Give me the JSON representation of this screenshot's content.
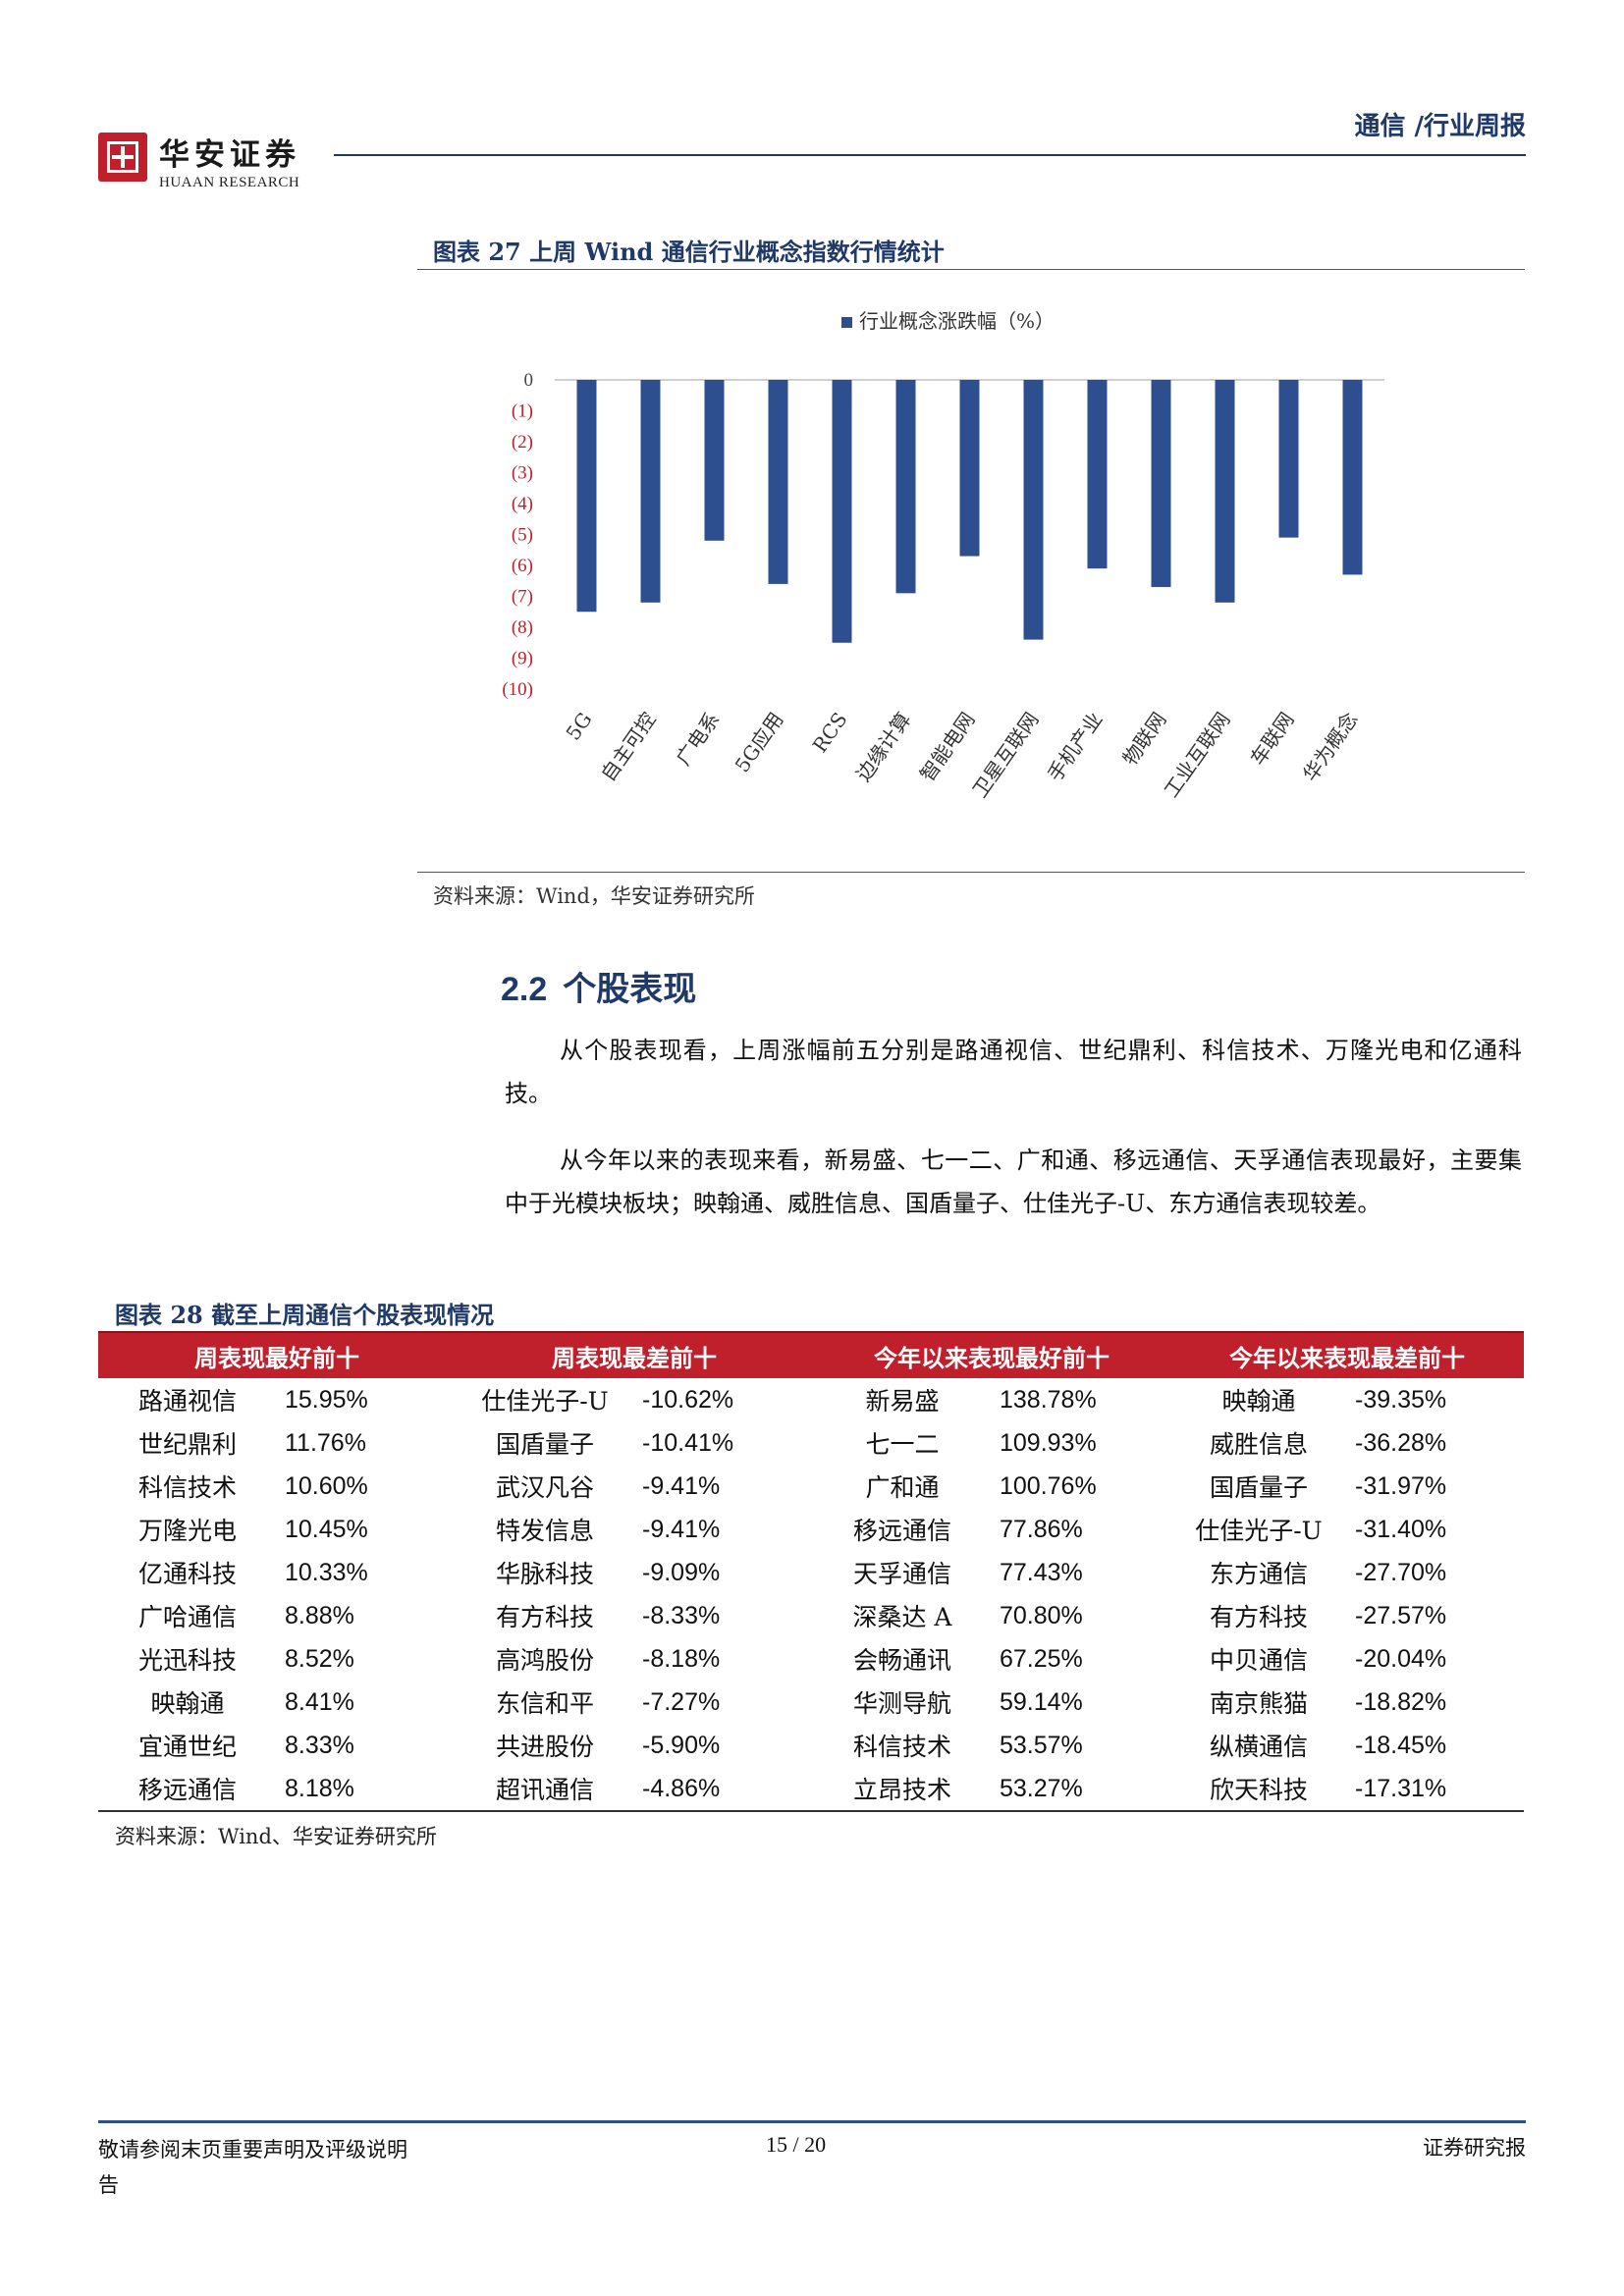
{
  "header": {
    "logo_cn": "华安证券",
    "logo_en": "HUAAN RESEARCH",
    "report_tag": "通信 /行业周报"
  },
  "figure27": {
    "title": "图表 27 上周 Wind 通信行业概念指数行情统计",
    "source": "资料来源：Wind，华安证券研究所",
    "chart_data": {
      "type": "bar",
      "legend": "行业概念涨跌幅（%）",
      "legend_position": "top-center",
      "categories": [
        "5G",
        "自主可控",
        "广电系",
        "5G应用",
        "RCS",
        "边缘计算",
        "智能电网",
        "卫星互联网",
        "手机产业",
        "物联网",
        "工业互联网",
        "车联网",
        "华为概念"
      ],
      "values": [
        -7.5,
        -7.2,
        -5.2,
        -6.6,
        -8.5,
        -6.9,
        -5.7,
        -8.4,
        -6.1,
        -6.7,
        -7.2,
        -5.1,
        -6.3
      ],
      "ylim": [
        -10,
        0
      ],
      "yticks": [
        "0",
        "(1)",
        "(2)",
        "(3)",
        "(4)",
        "(5)",
        "(6)",
        "(7)",
        "(8)",
        "(9)",
        "(10)"
      ],
      "bar_color": "#2e4f8f",
      "grid": false
    }
  },
  "section": {
    "number": "2.2",
    "title": "个股表现",
    "para1": "从个股表现看，上周涨幅前五分别是路通视信、世纪鼎利、科信技术、万隆光电和亿通科技。",
    "para2": "从今年以来的表现来看，新易盛、七一二、广和通、移远通信、天孚通信表现最好，主要集中于光模块板块；映翰通、威胜信息、国盾量子、仕佳光子-U、东方通信表现较差。"
  },
  "figure28": {
    "title": "图表 28 截至上周通信个股表现情况",
    "headers": [
      "周表现最好前十",
      "周表现最差前十",
      "今年以来表现最好前十",
      "今年以来表现最差前十"
    ],
    "header_color": "#c0202b",
    "rows": [
      [
        "路通视信",
        "15.95%",
        "仕佳光子-U",
        "-10.62%",
        "新易盛",
        "138.78%",
        "映翰通",
        "-39.35%"
      ],
      [
        "世纪鼎利",
        "11.76%",
        "国盾量子",
        "-10.41%",
        "七一二",
        "109.93%",
        "威胜信息",
        "-36.28%"
      ],
      [
        "科信技术",
        "10.60%",
        "武汉凡谷",
        "-9.41%",
        "广和通",
        "100.76%",
        "国盾量子",
        "-31.97%"
      ],
      [
        "万隆光电",
        "10.45%",
        "特发信息",
        "-9.41%",
        "移远通信",
        "77.86%",
        "仕佳光子-U",
        "-31.40%"
      ],
      [
        "亿通科技",
        "10.33%",
        "华脉科技",
        "-9.09%",
        "天孚通信",
        "77.43%",
        "东方通信",
        "-27.70%"
      ],
      [
        "广哈通信",
        "8.88%",
        "有方科技",
        "-8.33%",
        "深桑达 A",
        "70.80%",
        "有方科技",
        "-27.57%"
      ],
      [
        "光迅科技",
        "8.52%",
        "高鸿股份",
        "-8.18%",
        "会畅通讯",
        "67.25%",
        "中贝通信",
        "-20.04%"
      ],
      [
        "映翰通",
        "8.41%",
        "东信和平",
        "-7.27%",
        "华测导航",
        "59.14%",
        "南京熊猫",
        "-18.82%"
      ],
      [
        "宜通世纪",
        "8.33%",
        "共进股份",
        "-5.90%",
        "科信技术",
        "53.57%",
        "纵横通信",
        "-18.45%"
      ],
      [
        "移远通信",
        "8.18%",
        "超讯通信",
        "-4.86%",
        "立昂技术",
        "53.27%",
        "欣天科技",
        "-17.31%"
      ]
    ],
    "source": "资料来源：Wind、华安证券研究所"
  },
  "footer": {
    "disclaimer": "敬请参阅末页重要声明及评级说明",
    "disclaimer_tail": "告",
    "page": "15 / 20",
    "right": "证券研究报"
  }
}
